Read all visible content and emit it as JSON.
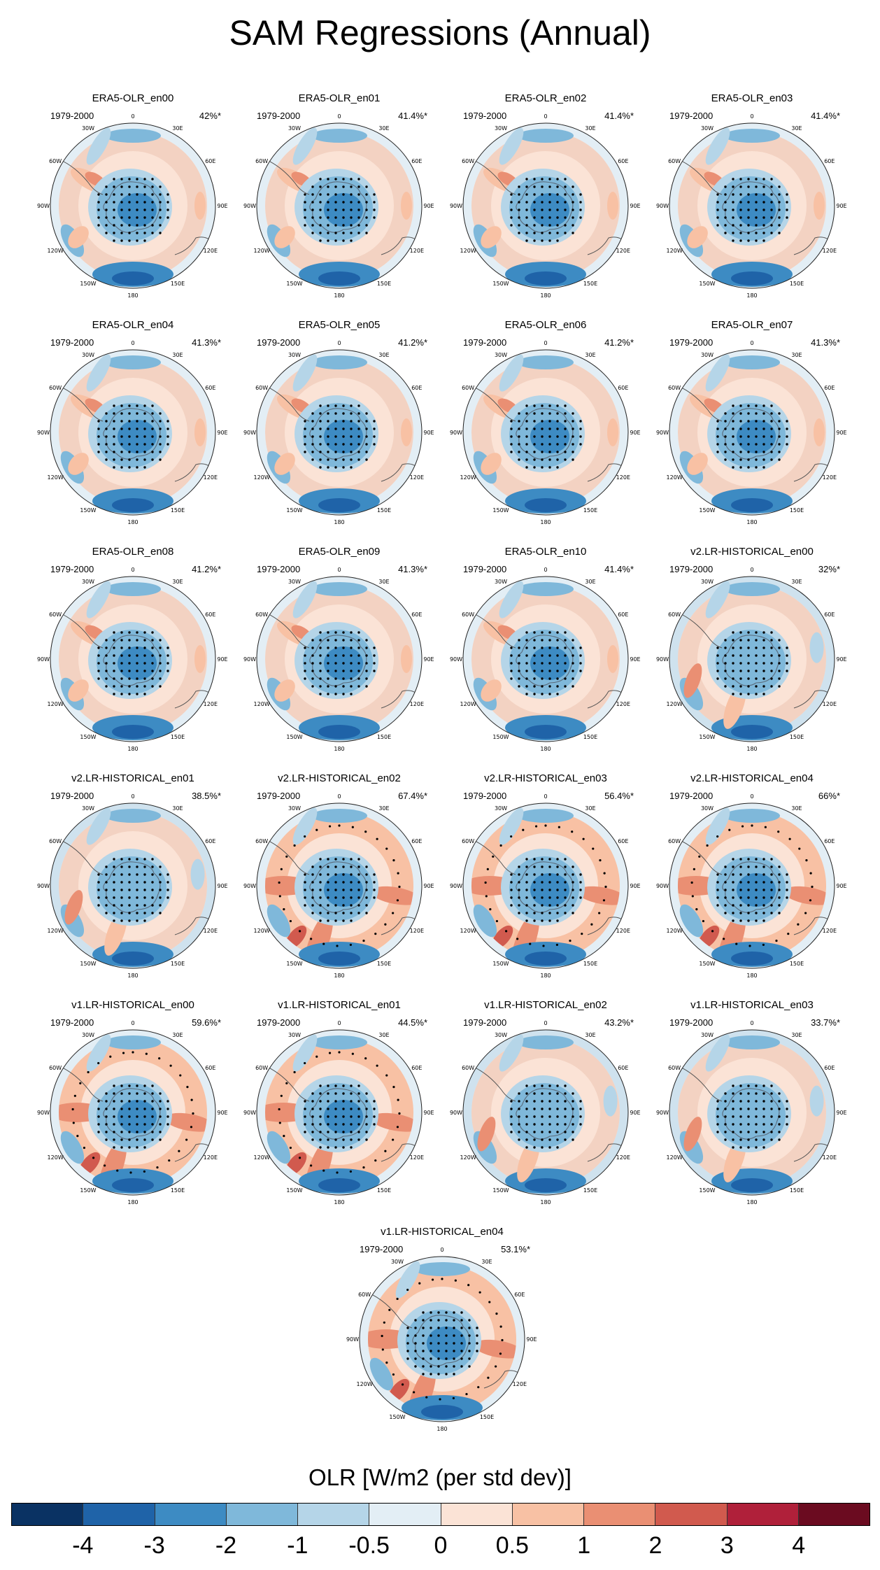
{
  "title": "SAM Regressions (Annual)",
  "period_label": "1979-2000",
  "lon_labels": [
    "0",
    "30E",
    "60E",
    "90E",
    "120E",
    "150E",
    "180",
    "150W",
    "120W",
    "90W",
    "60W",
    "30W"
  ],
  "panels": [
    {
      "title": "ERA5-OLR_en00",
      "variance": "42%*",
      "variant": "era5"
    },
    {
      "title": "ERA5-OLR_en01",
      "variance": "41.4%*",
      "variant": "era5"
    },
    {
      "title": "ERA5-OLR_en02",
      "variance": "41.4%*",
      "variant": "era5"
    },
    {
      "title": "ERA5-OLR_en03",
      "variance": "41.4%*",
      "variant": "era5"
    },
    {
      "title": "ERA5-OLR_en04",
      "variance": "41.3%*",
      "variant": "era5"
    },
    {
      "title": "ERA5-OLR_en05",
      "variance": "41.2%*",
      "variant": "era5"
    },
    {
      "title": "ERA5-OLR_en06",
      "variance": "41.2%*",
      "variant": "era5"
    },
    {
      "title": "ERA5-OLR_en07",
      "variance": "41.3%*",
      "variant": "era5"
    },
    {
      "title": "ERA5-OLR_en08",
      "variance": "41.2%*",
      "variant": "era5"
    },
    {
      "title": "ERA5-OLR_en09",
      "variance": "41.3%*",
      "variant": "era5"
    },
    {
      "title": "ERA5-OLR_en10",
      "variance": "41.4%*",
      "variant": "era5"
    },
    {
      "title": "v2.LR-HISTORICAL_en00",
      "variance": "32%*",
      "variant": "weak"
    },
    {
      "title": "v2.LR-HISTORICAL_en01",
      "variance": "38.5%*",
      "variant": "weak"
    },
    {
      "title": "v2.LR-HISTORICAL_en02",
      "variance": "67.4%*",
      "variant": "strong"
    },
    {
      "title": "v2.LR-HISTORICAL_en03",
      "variance": "56.4%*",
      "variant": "strong"
    },
    {
      "title": "v2.LR-HISTORICAL_en04",
      "variance": "66%*",
      "variant": "strong"
    },
    {
      "title": "v1.LR-HISTORICAL_en00",
      "variance": "59.6%*",
      "variant": "strong"
    },
    {
      "title": "v1.LR-HISTORICAL_en01",
      "variance": "44.5%*",
      "variant": "strong"
    },
    {
      "title": "v1.LR-HISTORICAL_en02",
      "variance": "43.2%*",
      "variant": "weak"
    },
    {
      "title": "v1.LR-HISTORICAL_en03",
      "variance": "33.7%*",
      "variant": "weak"
    },
    {
      "title": "v1.LR-HISTORICAL_en04",
      "variance": "53.1%*",
      "variant": "strong"
    }
  ],
  "colorbar": {
    "title": "OLR [W/m2 (per std dev)]",
    "labels": [
      "-4",
      "-3",
      "-2",
      "-1",
      "-0.5",
      "0",
      "0.5",
      "1",
      "2",
      "3",
      "4"
    ],
    "colors": [
      "#0a3263",
      "#1f63a8",
      "#3d8bc3",
      "#7fb8da",
      "#b5d5e8",
      "#e3eef5",
      "#fbe3d6",
      "#f8c1a4",
      "#ea8f73",
      "#d15a4e",
      "#b0203a",
      "#6b0b20"
    ]
  },
  "chart_data": {
    "type": "heatmap",
    "title": "SAM Regressions (Annual)",
    "projection": "south polar stereographic",
    "colorbar_label": "OLR [W/m2 (per std dev)]",
    "levels": [
      -4,
      -3,
      -2,
      -1,
      -0.5,
      0,
      0.5,
      1,
      2,
      3,
      4
    ],
    "period": "1979-2000",
    "panels": [
      {
        "name": "ERA5-OLR_en00",
        "variance_explained_pct": 42
      },
      {
        "name": "ERA5-OLR_en01",
        "variance_explained_pct": 41.4
      },
      {
        "name": "ERA5-OLR_en02",
        "variance_explained_pct": 41.4
      },
      {
        "name": "ERA5-OLR_en03",
        "variance_explained_pct": 41.4
      },
      {
        "name": "ERA5-OLR_en04",
        "variance_explained_pct": 41.3
      },
      {
        "name": "ERA5-OLR_en05",
        "variance_explained_pct": 41.2
      },
      {
        "name": "ERA5-OLR_en06",
        "variance_explained_pct": 41.2
      },
      {
        "name": "ERA5-OLR_en07",
        "variance_explained_pct": 41.3
      },
      {
        "name": "ERA5-OLR_en08",
        "variance_explained_pct": 41.2
      },
      {
        "name": "ERA5-OLR_en09",
        "variance_explained_pct": 41.3
      },
      {
        "name": "ERA5-OLR_en10",
        "variance_explained_pct": 41.4
      },
      {
        "name": "v2.LR-HISTORICAL_en00",
        "variance_explained_pct": 32
      },
      {
        "name": "v2.LR-HISTORICAL_en01",
        "variance_explained_pct": 38.5
      },
      {
        "name": "v2.LR-HISTORICAL_en02",
        "variance_explained_pct": 67.4
      },
      {
        "name": "v2.LR-HISTORICAL_en03",
        "variance_explained_pct": 56.4
      },
      {
        "name": "v2.LR-HISTORICAL_en04",
        "variance_explained_pct": 66
      },
      {
        "name": "v1.LR-HISTORICAL_en00",
        "variance_explained_pct": 59.6
      },
      {
        "name": "v1.LR-HISTORICAL_en01",
        "variance_explained_pct": 44.5
      },
      {
        "name": "v1.LR-HISTORICAL_en02",
        "variance_explained_pct": 43.2
      },
      {
        "name": "v1.LR-HISTORICAL_en03",
        "variance_explained_pct": 33.7
      },
      {
        "name": "v1.LR-HISTORICAL_en04",
        "variance_explained_pct": 53.1
      }
    ]
  }
}
